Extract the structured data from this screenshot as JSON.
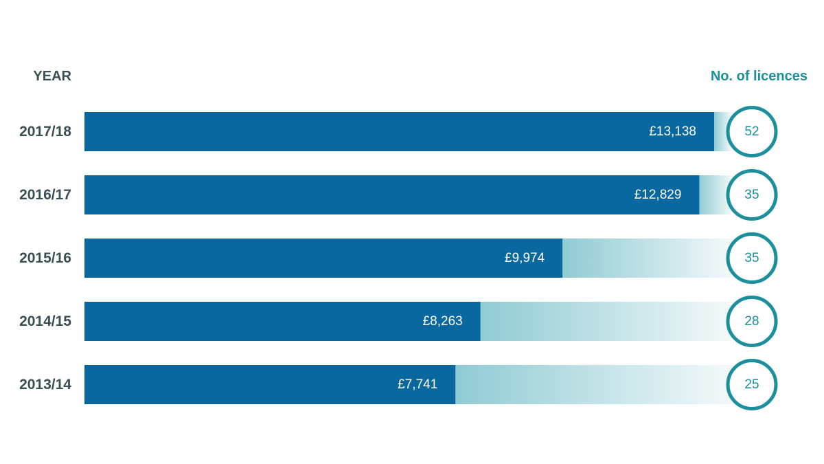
{
  "chart_data": {
    "type": "bar",
    "orientation": "horizontal",
    "category_label": "YEAR",
    "categories": [
      "2017/18",
      "2016/17",
      "2015/16",
      "2014/15",
      "2013/14"
    ],
    "series": [
      {
        "values": [
          13138,
          12829,
          9974,
          8263,
          7741
        ],
        "value_labels": [
          "£13,138",
          "£12,829",
          "£9,974",
          "£8,263",
          "£7,741"
        ],
        "color": "#0a68a0"
      },
      {
        "name": "No. of licences",
        "values": [
          52,
          35,
          35,
          28,
          25
        ],
        "color": "#1b8f9b"
      }
    ]
  }
}
